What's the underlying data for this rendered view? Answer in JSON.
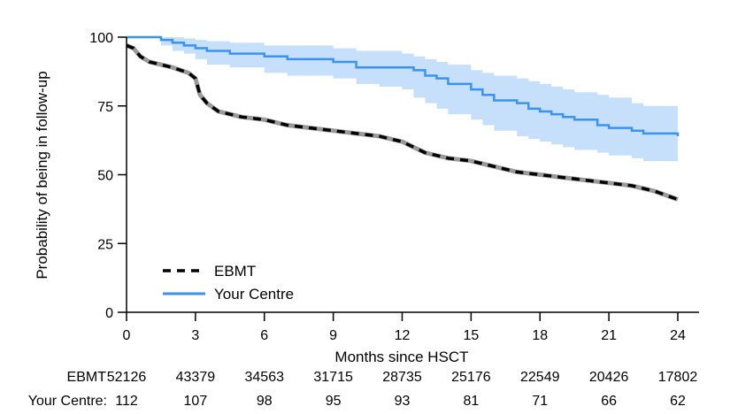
{
  "chart_data": {
    "type": "line",
    "xlabel": "Months since HSCT",
    "ylabel": "Probability of being in follow-up",
    "xlim": [
      0,
      24
    ],
    "ylim": [
      0,
      100
    ],
    "x_ticks": [
      "0",
      "3",
      "6",
      "9",
      "12",
      "15",
      "18",
      "21",
      "24"
    ],
    "y_ticks": [
      "0",
      "25",
      "50",
      "75",
      "100"
    ],
    "grid": false,
    "legend_position": "bottom-left",
    "series": [
      {
        "name": "EBMT",
        "style": "dashed",
        "color": "#000000",
        "x": [
          0,
          0.3,
          0.6,
          1,
          2,
          2.7,
          3,
          3.2,
          3.5,
          4,
          5,
          6,
          7,
          8,
          9,
          10,
          11,
          12,
          13,
          14,
          15,
          16,
          17,
          18,
          19,
          20,
          21,
          22,
          23,
          24
        ],
        "y": [
          97,
          96,
          93,
          91,
          89,
          87,
          85,
          79,
          76,
          73,
          71,
          70,
          68,
          67,
          66,
          65,
          64,
          62,
          58,
          56,
          55,
          53,
          51,
          50,
          49,
          48,
          47,
          46,
          44,
          41
        ]
      },
      {
        "name": "Your Centre",
        "style": "solid",
        "color": "#3b93f0",
        "band_color": "#c6dffa",
        "x": [
          0,
          1.5,
          2,
          2.5,
          3,
          3.5,
          4.5,
          6,
          7,
          9,
          10,
          11,
          12,
          12.5,
          13,
          13.5,
          14,
          15,
          15.5,
          16,
          17,
          17.5,
          18,
          18.5,
          19,
          19.5,
          20.5,
          21,
          22,
          22.5,
          24
        ],
        "y": [
          100,
          99,
          98,
          97,
          96,
          95,
          94,
          93,
          92,
          91,
          89,
          89,
          89,
          88,
          86,
          85,
          83,
          81,
          79,
          77,
          76,
          74,
          73,
          72,
          71,
          70,
          68,
          67,
          66,
          65,
          64
        ],
        "lower": [
          100,
          97,
          95,
          94,
          92,
          90,
          89,
          87,
          86,
          85,
          83,
          82,
          81,
          78,
          76,
          74,
          72,
          70,
          68,
          66,
          64,
          63,
          62,
          61,
          60,
          59,
          58,
          57,
          56,
          55,
          55
        ],
        "upper": [
          100,
          100,
          100,
          99.5,
          99,
          98.5,
          98,
          97,
          97,
          96,
          95,
          95,
          94,
          93,
          92,
          91,
          90,
          88,
          87,
          86,
          85,
          84,
          83,
          82,
          81,
          80,
          79,
          78,
          76,
          75,
          74
        ]
      }
    ],
    "risk_table": {
      "rows": [
        {
          "label": "EBMT",
          "values": [
            "52126",
            "43379",
            "34563",
            "31715",
            "28735",
            "25176",
            "22549",
            "20426",
            "17802"
          ]
        },
        {
          "label": "Your Centre:",
          "values": [
            "112",
            "107",
            "98",
            "95",
            "93",
            "81",
            "71",
            "66",
            "62"
          ]
        }
      ]
    }
  }
}
